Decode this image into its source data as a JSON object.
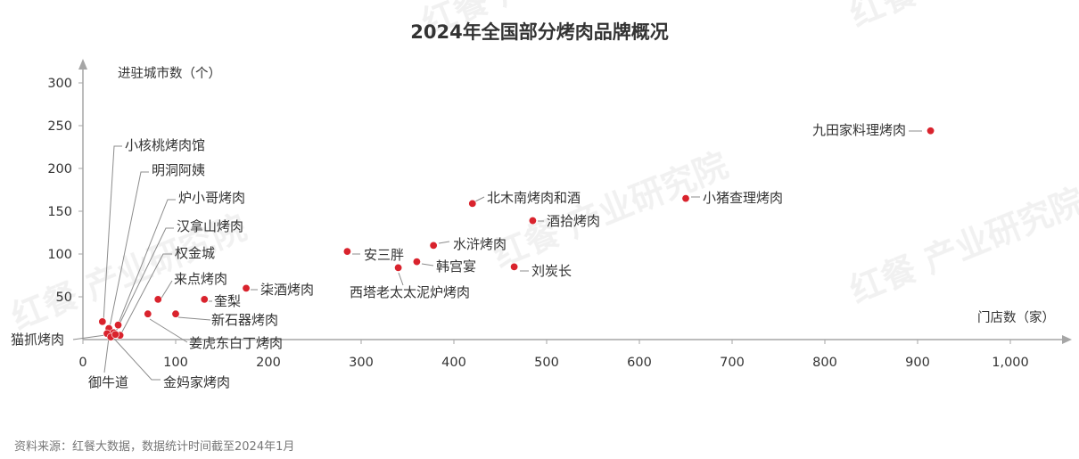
{
  "chart_data": {
    "type": "scatter",
    "title": "2024年全国部分烤肉品牌概况",
    "xlabel": "门店数（家）",
    "ylabel": "进驻城市数（个）",
    "xlim": [
      0,
      1000
    ],
    "ylim": [
      0,
      300
    ],
    "xticks": [
      0,
      100,
      200,
      300,
      400,
      500,
      600,
      700,
      800,
      900,
      1000
    ],
    "xtick_labels": [
      "0",
      "100",
      "200",
      "300",
      "400",
      "500",
      "600",
      "700",
      "800",
      "900",
      "1,000"
    ],
    "yticks": [
      50,
      100,
      150,
      200,
      250,
      300
    ],
    "ytick_labels": [
      "50",
      "100",
      "150",
      "200",
      "250",
      "300"
    ],
    "grid": false,
    "point_color": "#d9232d",
    "points": [
      {
        "label": "九田家料理烤肉",
        "x": 914,
        "y": 244
      },
      {
        "label": "小猪查理烤肉",
        "x": 650,
        "y": 165
      },
      {
        "label": "北木南烤肉和酒",
        "x": 420,
        "y": 159
      },
      {
        "label": "酒拾烤肉",
        "x": 485,
        "y": 139
      },
      {
        "label": "水浒烤肉",
        "x": 378,
        "y": 110
      },
      {
        "label": "安三胖",
        "x": 285,
        "y": 103
      },
      {
        "label": "韩宫宴",
        "x": 360,
        "y": 91
      },
      {
        "label": "西塔老太太泥炉烤肉",
        "x": 340,
        "y": 84
      },
      {
        "label": "刘炭长",
        "x": 465,
        "y": 85
      },
      {
        "label": "柒酒烤肉",
        "x": 176,
        "y": 60
      },
      {
        "label": "来点烤肉",
        "x": 81,
        "y": 47
      },
      {
        "label": "奎梨",
        "x": 131,
        "y": 47
      },
      {
        "label": "新石器烤肉",
        "x": 100,
        "y": 30
      },
      {
        "label": "姜虎东白丁烤肉",
        "x": 70,
        "y": 30
      },
      {
        "label": "小核桃烤肉馆",
        "x": 21,
        "y": 21
      },
      {
        "label": "明洞阿姨",
        "x": 28,
        "y": 13
      },
      {
        "label": "炉小哥烤肉",
        "x": 38,
        "y": 17
      },
      {
        "label": "汉拿山烤肉",
        "x": 33,
        "y": 8
      },
      {
        "label": "权金城",
        "x": 40,
        "y": 5
      },
      {
        "label": "猫抓烤肉",
        "x": 26,
        "y": 7
      },
      {
        "label": "御牛道",
        "x": 30,
        "y": 3
      },
      {
        "label": "金妈家烤肉",
        "x": 35,
        "y": 6
      }
    ]
  },
  "watermark": "红餐 产业研究院",
  "source": "资料来源：红餐大数据，数据统计时间截至2024年1月"
}
